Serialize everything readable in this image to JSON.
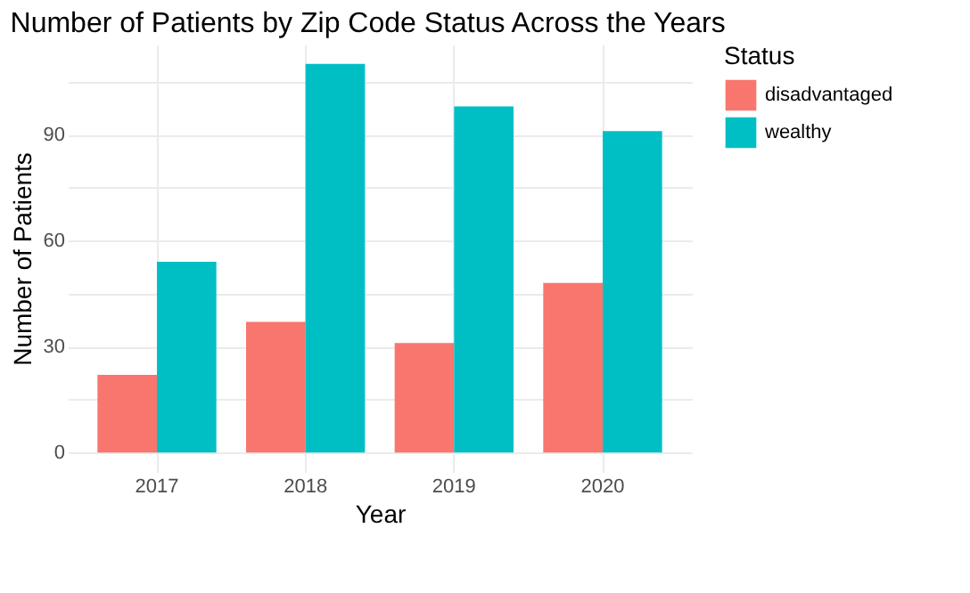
{
  "chart_data": {
    "type": "bar",
    "title": "Number of Patients by Zip Code Status Across the Years",
    "xlabel": "Year",
    "ylabel": "Number of Patients",
    "legend_title": "Status",
    "categories": [
      "2017",
      "2018",
      "2019",
      "2020"
    ],
    "series": [
      {
        "name": "disadvantaged",
        "color": "#f8766d",
        "values": [
          22,
          37,
          31,
          48
        ]
      },
      {
        "name": "wealthy",
        "color": "#00bfc4",
        "values": [
          54,
          110,
          98,
          91
        ]
      }
    ],
    "ylim": [
      -5.5,
      115.5
    ],
    "yticks": [
      0,
      {
        "value": 15,
        "label": null
      },
      30,
      {
        "value": 45,
        "label": null
      },
      60,
      {
        "value": 75,
        "label": null
      },
      90,
      {
        "value": 105,
        "label": null
      }
    ],
    "grid": true,
    "legend": "right"
  }
}
